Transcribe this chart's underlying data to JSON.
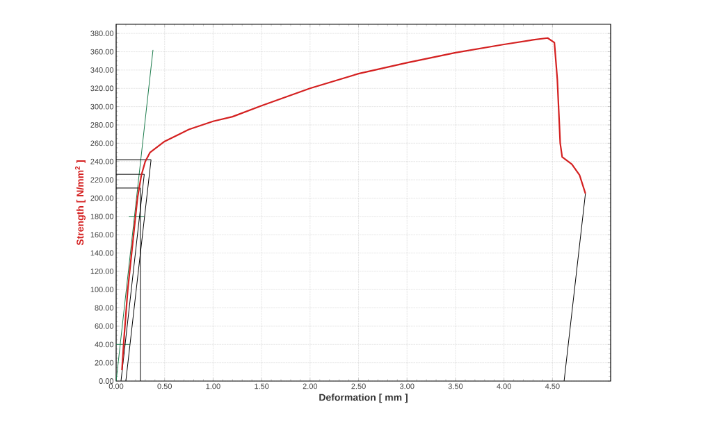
{
  "chart_data": {
    "type": "line",
    "xlabel": "Deformation [ mm ]",
    "ylabel": "Strength [ N/mm$^{2}$ ]",
    "xlim": [
      0,
      5.1
    ],
    "ylim": [
      0,
      390
    ],
    "xticks": [
      {
        "value": 0,
        "label": "0.00"
      },
      {
        "value": 0.5,
        "label": "0.50"
      },
      {
        "value": 1,
        "label": "1.00"
      },
      {
        "value": 1.5,
        "label": "1.50"
      },
      {
        "value": 2,
        "label": "2.00"
      },
      {
        "value": 2.5,
        "label": "2.50"
      },
      {
        "value": 3,
        "label": "3.00"
      },
      {
        "value": 3.5,
        "label": "3.50"
      },
      {
        "value": 4,
        "label": "4.00"
      },
      {
        "value": 4.5,
        "label": "4.50"
      }
    ],
    "yticks": [
      {
        "value": 0,
        "label": "0.00"
      },
      {
        "value": 20,
        "label": "20.00"
      },
      {
        "value": 40,
        "label": "40.00"
      },
      {
        "value": 60,
        "label": "60.00"
      },
      {
        "value": 80,
        "label": "80.00"
      },
      {
        "value": 100,
        "label": "100.00"
      },
      {
        "value": 120,
        "label": "120.00"
      },
      {
        "value": 140,
        "label": "140.00"
      },
      {
        "value": 160,
        "label": "160.00"
      },
      {
        "value": 180,
        "label": "180.00"
      },
      {
        "value": 200,
        "label": "200.00"
      },
      {
        "value": 220,
        "label": "220.00"
      },
      {
        "value": 240,
        "label": "240.00"
      },
      {
        "value": 260,
        "label": "260.00"
      },
      {
        "value": 280,
        "label": "280.00"
      },
      {
        "value": 300,
        "label": "300.00"
      },
      {
        "value": 320,
        "label": "320.00"
      },
      {
        "value": 340,
        "label": "340.00"
      },
      {
        "value": 360,
        "label": "360.00"
      },
      {
        "value": 380,
        "label": "380.00"
      }
    ],
    "grid": true,
    "marker": "none",
    "series": [
      {
        "color": "#1a7a4a",
        "x": [
          0,
          0.38
        ],
        "values": [
          0,
          362
        ]
      },
      {
        "color": "#1a7a4a",
        "x": [
          0,
          0.14
        ],
        "values": [
          40,
          40
        ]
      },
      {
        "color": "#1a7a4a",
        "x": [
          0.13,
          0.29
        ],
        "values": [
          180,
          180
        ]
      },
      {
        "color": "#000000",
        "x": [
          0,
          0.25
        ],
        "values": [
          211,
          211
        ]
      },
      {
        "color": "#000000",
        "x": [
          0,
          0.29
        ],
        "values": [
          226,
          226
        ]
      },
      {
        "color": "#000000",
        "x": [
          0,
          0.36
        ],
        "values": [
          242,
          242
        ]
      },
      {
        "color": "#000000",
        "x": [
          0.25,
          0.25
        ],
        "values": [
          0,
          211
        ]
      },
      {
        "color": "#000000",
        "x": [
          0.05,
          0.29
        ],
        "values": [
          0,
          226
        ]
      },
      {
        "color": "#000000",
        "x": [
          0.1,
          0.36
        ],
        "values": [
          0,
          242
        ]
      },
      {
        "color": "#000000",
        "x": [
          4.62,
          4.84
        ],
        "values": [
          0,
          205
        ]
      },
      {
        "color": "#d42020",
        "x": [
          0.06,
          0.08,
          0.12,
          0.18,
          0.22,
          0.26,
          0.3,
          0.35,
          0.5,
          0.75,
          1.0,
          1.2,
          1.5,
          2.0,
          2.5,
          3.0,
          3.5,
          4.0,
          4.3,
          4.45,
          4.52,
          4.55,
          4.58,
          4.6,
          4.7,
          4.78,
          4.84
        ],
        "values": [
          12,
          45,
          100,
          160,
          200,
          225,
          240,
          250,
          262,
          275,
          284,
          289,
          301,
          320,
          336,
          348,
          359,
          368,
          373,
          375,
          370,
          330,
          260,
          245,
          237,
          225,
          205
        ]
      }
    ]
  }
}
